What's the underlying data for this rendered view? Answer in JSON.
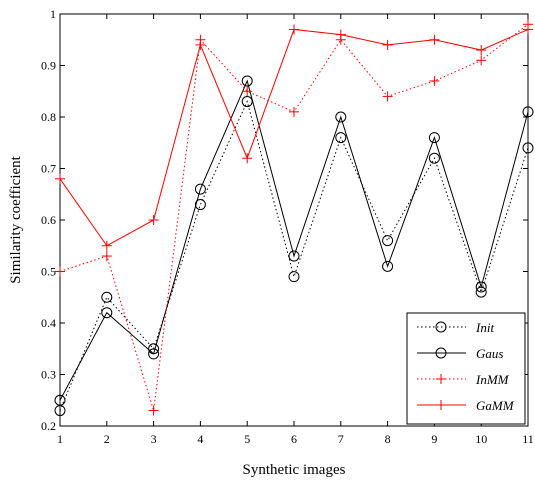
{
  "chart_data": {
    "type": "line",
    "title": "",
    "xlabel": "Synthetic images",
    "ylabel": "Similarity coefficient",
    "x": [
      1,
      2,
      3,
      4,
      5,
      6,
      7,
      8,
      9,
      10,
      11
    ],
    "xticks": [
      "1",
      "2",
      "3",
      "4",
      "5",
      "6",
      "7",
      "8",
      "9",
      "10",
      "11"
    ],
    "yticks": [
      "0.2",
      "0.3",
      "0.4",
      "0.5",
      "0.6",
      "0.7",
      "0.8",
      "0.9",
      "1"
    ],
    "xlim": [
      1,
      11
    ],
    "ylim": [
      0.2,
      1.0
    ],
    "grid": false,
    "legend_position": "bottom-right",
    "series": [
      {
        "name": "Init",
        "color": "#000000",
        "line": "dotted",
        "marker": "circle",
        "values": [
          0.23,
          0.45,
          0.35,
          0.63,
          0.83,
          0.49,
          0.76,
          0.56,
          0.72,
          0.46,
          0.74
        ]
      },
      {
        "name": "Gaus",
        "color": "#000000",
        "line": "solid",
        "marker": "circle",
        "values": [
          0.25,
          0.42,
          0.34,
          0.66,
          0.87,
          0.53,
          0.8,
          0.51,
          0.76,
          0.47,
          0.81
        ]
      },
      {
        "name": "InMM",
        "color": "#ff0000",
        "line": "dotted",
        "marker": "plus",
        "values": [
          0.5,
          0.53,
          0.23,
          0.95,
          0.85,
          0.81,
          0.95,
          0.84,
          0.87,
          0.91,
          0.98
        ]
      },
      {
        "name": "GaMM",
        "color": "#ff0000",
        "line": "solid",
        "marker": "plus",
        "values": [
          0.68,
          0.55,
          0.6,
          0.94,
          0.72,
          0.97,
          0.96,
          0.94,
          0.95,
          0.93,
          0.97
        ]
      }
    ]
  }
}
